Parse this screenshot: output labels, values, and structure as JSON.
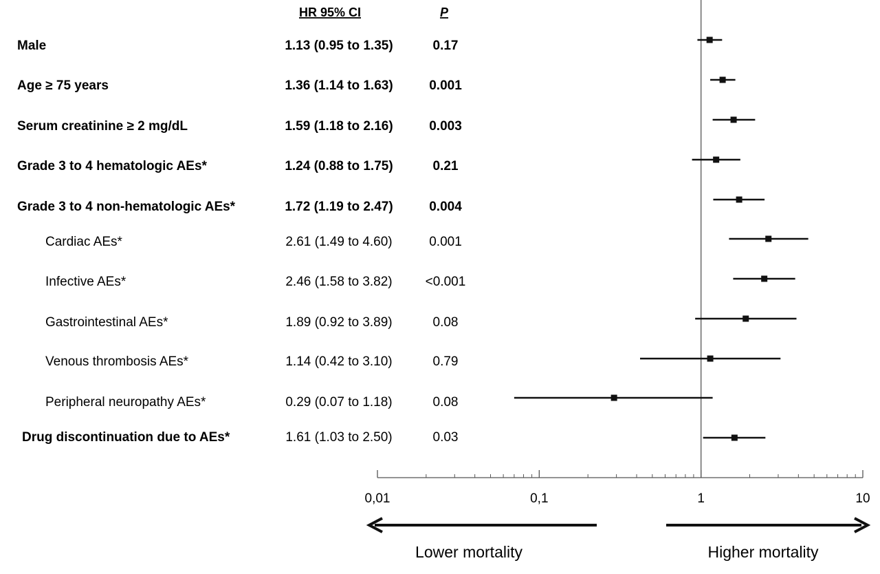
{
  "headers": {
    "hr": "HR 95% CI",
    "p": "P"
  },
  "chart_data": {
    "type": "forest",
    "scale": "log",
    "xlim": [
      0.01,
      10
    ],
    "reference_line": 1,
    "ticks": [
      {
        "value": 0.01,
        "label": "0,01"
      },
      {
        "value": 0.1,
        "label": "0,1"
      },
      {
        "value": 1,
        "label": "1"
      },
      {
        "value": 10,
        "label": "10"
      }
    ],
    "rows": [
      {
        "label": "Male",
        "hr": 1.13,
        "lo": 0.95,
        "hi": 1.35,
        "ci_text": "1.13 (0.95 to 1.35)",
        "p": "0.17",
        "bold": true,
        "indent": false
      },
      {
        "label": "Age ≥ 75 years",
        "hr": 1.36,
        "lo": 1.14,
        "hi": 1.63,
        "ci_text": "1.36 (1.14 to 1.63)",
        "p": "0.001",
        "bold": true,
        "indent": false
      },
      {
        "label": "Serum creatinine ≥ 2 mg/dL",
        "hr": 1.59,
        "lo": 1.18,
        "hi": 2.16,
        "ci_text": "1.59 (1.18 to 2.16)",
        "p": "0.003",
        "bold": true,
        "indent": false
      },
      {
        "label": "Grade 3 to 4 hematologic AEs*",
        "hr": 1.24,
        "lo": 0.88,
        "hi": 1.75,
        "ci_text": "1.24 (0.88 to 1.75)",
        "p": "0.21",
        "bold": true,
        "indent": false
      },
      {
        "label": "Grade 3 to 4 non-hematologic AEs*",
        "hr": 1.72,
        "lo": 1.19,
        "hi": 2.47,
        "ci_text": "1.72 (1.19 to 2.47)",
        "p": "0.004",
        "bold": true,
        "indent": false
      },
      {
        "label": "Cardiac AEs*",
        "hr": 2.61,
        "lo": 1.49,
        "hi": 4.6,
        "ci_text": "2.61 (1.49 to 4.60)",
        "p": "0.001",
        "bold": false,
        "indent": true
      },
      {
        "label": "Infective AEs*",
        "hr": 2.46,
        "lo": 1.58,
        "hi": 3.82,
        "ci_text": "2.46 (1.58 to 3.82)",
        "p": "<0.001",
        "bold": false,
        "indent": true
      },
      {
        "label": "Gastrointestinal AEs*",
        "hr": 1.89,
        "lo": 0.92,
        "hi": 3.89,
        "ci_text": "1.89 (0.92 to 3.89)",
        "p": "0.08",
        "bold": false,
        "indent": true
      },
      {
        "label": "Venous thrombosis AEs*",
        "hr": 1.14,
        "lo": 0.42,
        "hi": 3.1,
        "ci_text": "1.14 (0.42 to 3.10)",
        "p": "0.79",
        "bold": false,
        "indent": true
      },
      {
        "label": "Peripheral neuropathy AEs*",
        "hr": 0.29,
        "lo": 0.07,
        "hi": 1.18,
        "ci_text": "0.29 (0.07 to 1.18)",
        "p": "0.08",
        "bold": false,
        "indent": true
      },
      {
        "label": "Drug discontinuation due to AEs*",
        "hr": 1.61,
        "lo": 1.03,
        "hi": 2.5,
        "ci_text": "1.61 (1.03 to 2.50)",
        "p": "0.03",
        "bold": "label-only",
        "indent": false
      }
    ],
    "arrows": {
      "left": "Lower mortality",
      "right": "Higher mortality"
    }
  }
}
